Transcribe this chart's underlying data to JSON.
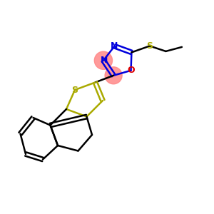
{
  "bg_color": "#ffffff",
  "N_color": "#0000dd",
  "O_color": "#dd0000",
  "S_yellow_color": "#aaaa00",
  "S_ethyl_color": "#aaaa00",
  "bond_blue": "#0000dd",
  "bond_black": "#000000",
  "bond_yellow": "#aaaa00",
  "highlight_color": "#ff8888",
  "highlight_alpha": 0.85,
  "figsize": [
    3.0,
    3.0
  ],
  "dpi": 100,
  "xlim": [
    0,
    10
  ],
  "ylim": [
    0,
    10
  ]
}
